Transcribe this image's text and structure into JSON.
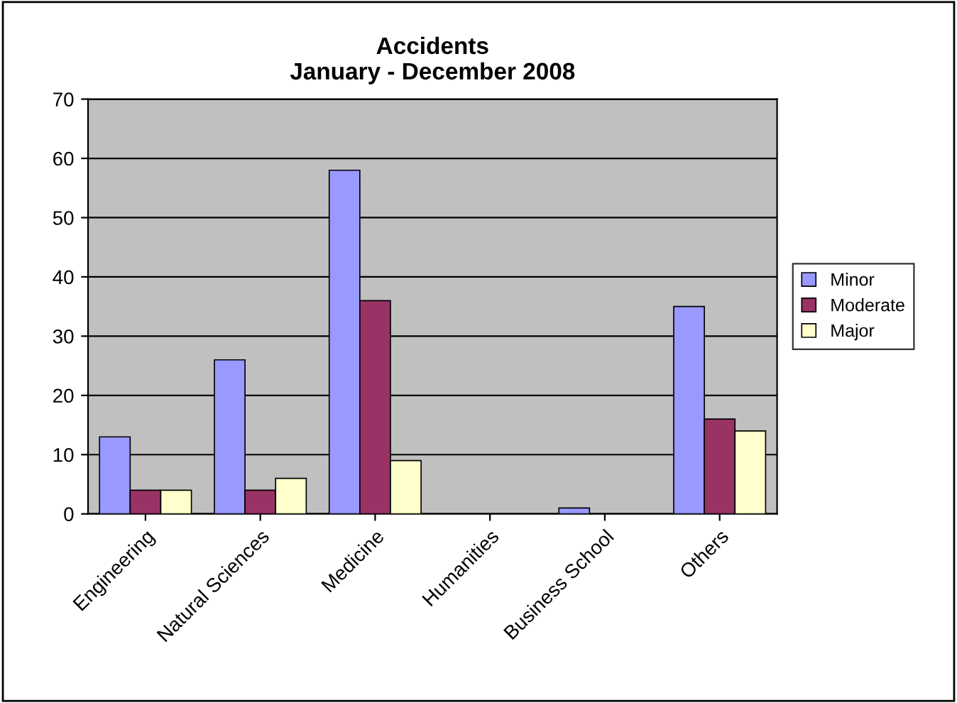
{
  "chart_data": {
    "type": "bar",
    "title": "Accidents\nJanuary - December 2008",
    "categories": [
      "Engineering",
      "Natural Sciences",
      "Medicine",
      "Humanities",
      "Business School",
      "Others"
    ],
    "series": [
      {
        "name": "Minor",
        "color": "#9999ff",
        "values": [
          13,
          26,
          58,
          0,
          1,
          35
        ]
      },
      {
        "name": "Moderate",
        "color": "#993366",
        "values": [
          4,
          4,
          36,
          0,
          0,
          16
        ]
      },
      {
        "name": "Major",
        "color": "#ffffcc",
        "values": [
          4,
          6,
          9,
          0,
          0,
          14
        ]
      }
    ],
    "ylim": [
      0,
      70
    ],
    "yticks": [
      0,
      10,
      20,
      30,
      40,
      50,
      60,
      70
    ],
    "grid": "y",
    "legend": "right"
  }
}
